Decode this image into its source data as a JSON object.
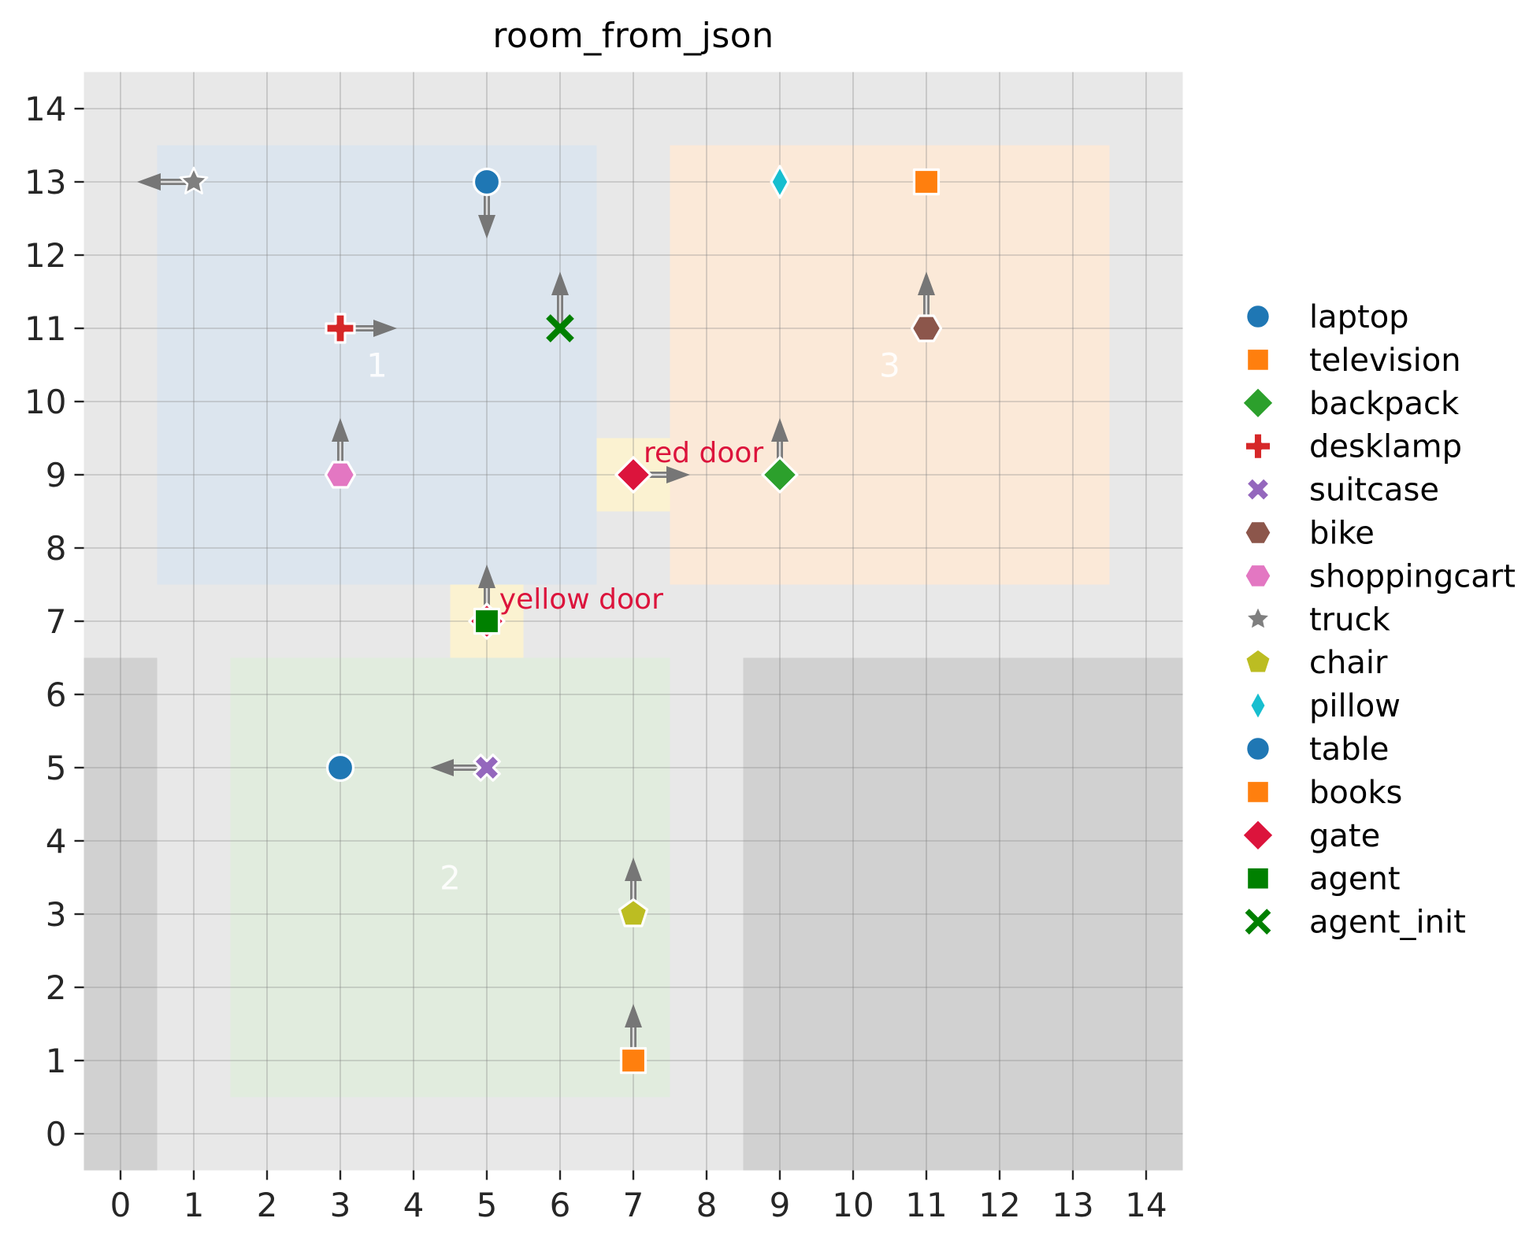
{
  "title": "room_from_json",
  "colors": {
    "plot_bg": "#e8e8e8",
    "blocked_region": "#d1d1d1",
    "grid": "#828282",
    "door_cell": "#fbf2d1",
    "door_marker": "#dc143c",
    "door_label": "#dc143c",
    "arrow": "#7c7c7c",
    "room_label": "#ffffff",
    "tick_text": "#262626",
    "title_text": "#000000"
  },
  "chart_data": {
    "type": "scatter",
    "title": "room_from_json",
    "xlabel": "",
    "ylabel": "",
    "xlim": [
      -0.5,
      14.5
    ],
    "ylim": [
      -0.5,
      14.5
    ],
    "grid": true,
    "legend_position": "right",
    "xticks": [
      0,
      1,
      2,
      3,
      4,
      5,
      6,
      7,
      8,
      9,
      10,
      11,
      12,
      13,
      14
    ],
    "yticks": [
      0,
      1,
      2,
      3,
      4,
      5,
      6,
      7,
      8,
      9,
      10,
      11,
      12,
      13,
      14
    ],
    "rooms": [
      {
        "label": "1",
        "x0": 0.5,
        "y0": 7.5,
        "x1": 6.5,
        "y1": 13.5,
        "color": "#dce5ee",
        "label_x": 3.5,
        "label_y": 10.5
      },
      {
        "label": "2",
        "x0": 1.5,
        "y0": 0.5,
        "x1": 7.5,
        "y1": 6.5,
        "color": "#e1ecde",
        "label_x": 4.5,
        "label_y": 3.5
      },
      {
        "label": "3",
        "x0": 7.5,
        "y0": 7.5,
        "x1": 13.5,
        "y1": 13.5,
        "color": "#fbe9d8",
        "label_x": 10.5,
        "label_y": 10.5
      }
    ],
    "blocked_regions": [
      {
        "x0": -0.5,
        "y0": -0.5,
        "x1": 0.5,
        "y1": 6.5
      },
      {
        "x0": 8.5,
        "y0": -0.5,
        "x1": 14.5,
        "y1": 6.5
      }
    ],
    "doors": [
      {
        "name": "yellow door",
        "x": 5,
        "y": 7,
        "label_x": 5.17,
        "label_y": 7.17
      },
      {
        "name": "red door",
        "x": 7,
        "y": 9,
        "label_x": 7.14,
        "label_y": 9.17
      }
    ],
    "objects": [
      {
        "name": "laptop",
        "x": 5,
        "y": 13,
        "marker": "circle",
        "color": "#1f77b4",
        "arrow": "down"
      },
      {
        "name": "television",
        "x": 11,
        "y": 13,
        "marker": "square",
        "color": "#ff7f0e",
        "arrow": null
      },
      {
        "name": "backpack",
        "x": 9,
        "y": 9,
        "marker": "diamond",
        "color": "#2ca02c",
        "arrow": "up"
      },
      {
        "name": "desklamp",
        "x": 3,
        "y": 11,
        "marker": "plus",
        "color": "#d62728",
        "arrow": "right"
      },
      {
        "name": "suitcase",
        "x": 5,
        "y": 5,
        "marker": "x",
        "color": "#9467bd",
        "arrow": "left"
      },
      {
        "name": "bike",
        "x": 11,
        "y": 11,
        "marker": "hexagon",
        "color": "#8c564b",
        "arrow": "up"
      },
      {
        "name": "shoppingcart",
        "x": 3,
        "y": 9,
        "marker": "hexagon",
        "color": "#e377c2",
        "arrow": "up"
      },
      {
        "name": "truck",
        "x": 1,
        "y": 13,
        "marker": "star",
        "color": "#7f7f7f",
        "arrow": "left"
      },
      {
        "name": "chair",
        "x": 7,
        "y": 3,
        "marker": "pentagon",
        "color": "#bcbd22",
        "arrow": "up"
      },
      {
        "name": "pillow",
        "x": 9,
        "y": 13,
        "marker": "thin-diamond",
        "color": "#17becf",
        "arrow": null
      },
      {
        "name": "table",
        "x": 3,
        "y": 5,
        "marker": "circle",
        "color": "#1f77b4",
        "arrow": null
      },
      {
        "name": "books",
        "x": 7,
        "y": 1,
        "marker": "square",
        "color": "#ff7f0e",
        "arrow": "up"
      },
      {
        "name": "gate",
        "x": 7,
        "y": 9,
        "marker": "diamond",
        "color": "#dc143c",
        "arrow": "right"
      },
      {
        "name": "agent",
        "x": 5,
        "y": 7,
        "marker": "square",
        "color": "#008000",
        "arrow": "up"
      },
      {
        "name": "agent_init",
        "x": 6,
        "y": 11,
        "marker": "x-thin",
        "color": "#008000",
        "arrow": "up"
      }
    ],
    "legend": [
      {
        "label": "laptop",
        "marker": "circle",
        "color": "#1f77b4"
      },
      {
        "label": "television",
        "marker": "square",
        "color": "#ff7f0e"
      },
      {
        "label": "backpack",
        "marker": "diamond",
        "color": "#2ca02c"
      },
      {
        "label": "desklamp",
        "marker": "plus",
        "color": "#d62728"
      },
      {
        "label": "suitcase",
        "marker": "x",
        "color": "#9467bd"
      },
      {
        "label": "bike",
        "marker": "hexagon",
        "color": "#8c564b"
      },
      {
        "label": "shoppingcart",
        "marker": "hexagon",
        "color": "#e377c2"
      },
      {
        "label": "truck",
        "marker": "star",
        "color": "#7f7f7f"
      },
      {
        "label": "chair",
        "marker": "pentagon",
        "color": "#bcbd22"
      },
      {
        "label": "pillow",
        "marker": "thin-diamond",
        "color": "#17becf"
      },
      {
        "label": "table",
        "marker": "circle",
        "color": "#1f77b4"
      },
      {
        "label": "books",
        "marker": "square",
        "color": "#ff7f0e"
      },
      {
        "label": "gate",
        "marker": "diamond",
        "color": "#dc143c"
      },
      {
        "label": "agent",
        "marker": "square",
        "color": "#008000"
      },
      {
        "label": "agent_init",
        "marker": "x-thin",
        "color": "#008000"
      }
    ]
  }
}
